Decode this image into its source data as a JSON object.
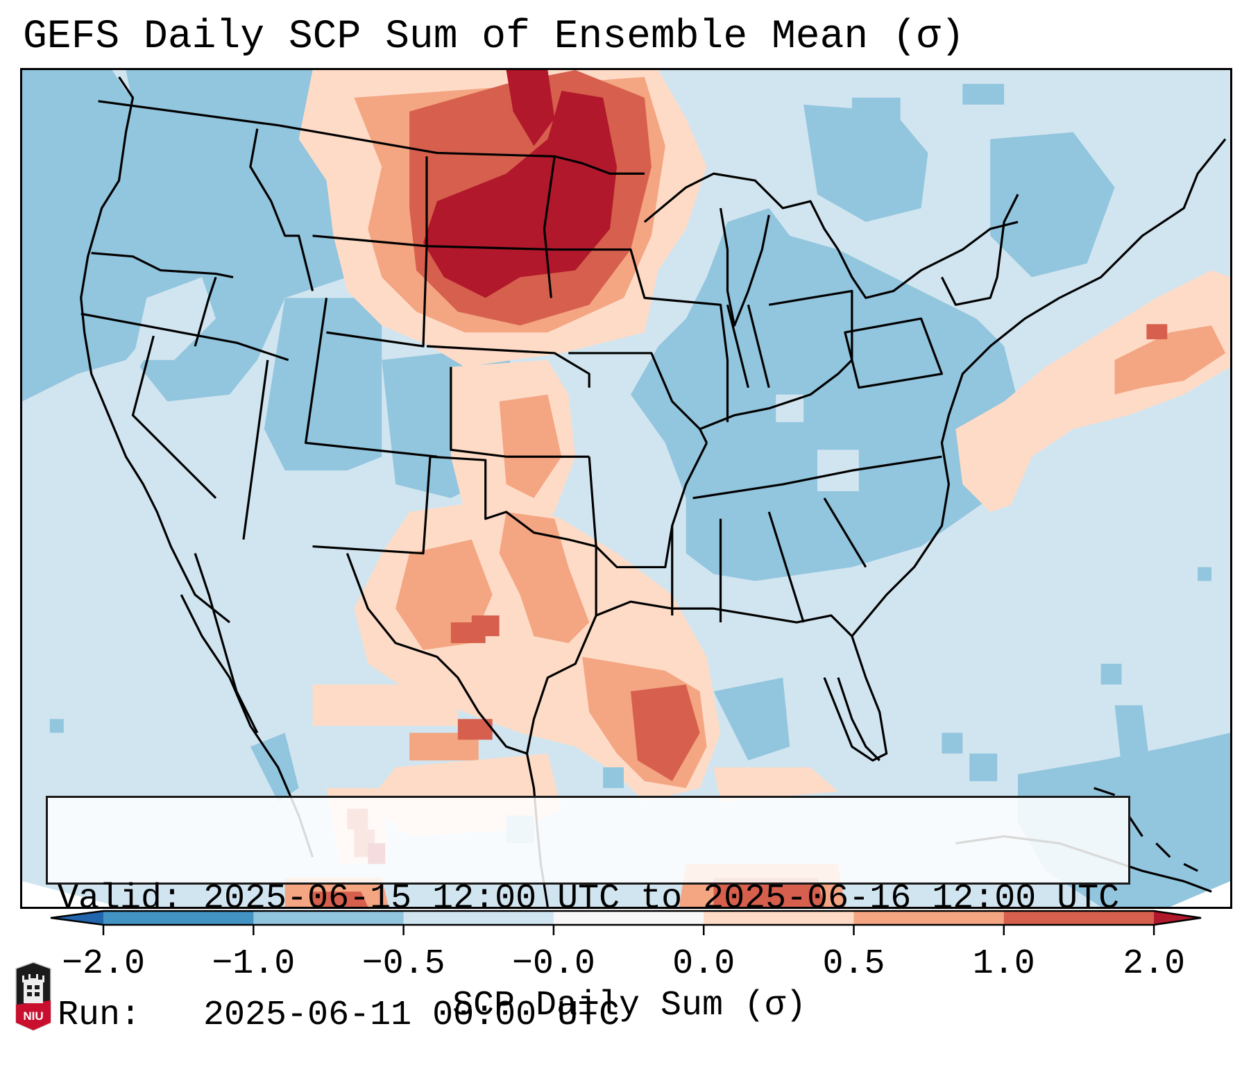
{
  "title": "GEFS Daily SCP Sum of Ensemble Mean (σ)",
  "legend": {
    "valid_line": "Valid: 2025-06-15 12:00 UTC to 2025-06-16 12:00 UTC",
    "run_line": "Run:   2025-06-11 00:00 UTC"
  },
  "colorbar": {
    "label": "SCP Daily Sum (σ)",
    "ticks": [
      "−2.0",
      "−1.0",
      "−0.5",
      "−0.0",
      "0.0",
      "0.5",
      "1.0",
      "2.0"
    ],
    "bounds": [
      -2.0,
      -1.0,
      -0.5,
      -0.0,
      0.0,
      0.5,
      1.0,
      2.0
    ],
    "under_color": "#2166ac",
    "over_color": "#b2182b",
    "segment_colors": [
      "#4393c3",
      "#92c5de",
      "#d1e5f0",
      "#f7f7f7",
      "#fddbc7",
      "#f4a582",
      "#d6604d"
    ],
    "extend": "both"
  },
  "map": {
    "projection": "Lambert Conformal (CONUS)",
    "background_class_color": "#d1e5f0",
    "field_levels": {
      "lt_-1": "#4393c3",
      "-1_to_-0.5": "#92c5de",
      "-0.5_to_0": "#d1e5f0",
      "0_to_0.5": "#fddbc7",
      "0.5_to_1": "#f4a582",
      "1_to_2": "#d6604d",
      "gt_2": "#b2182b"
    },
    "features": [
      {
        "region": "Northern Plains (MT/ND/SD/WY)",
        "max_level": "gt_2"
      },
      {
        "region": "Texas / SE Texas coast",
        "max_level": "1_to_2"
      },
      {
        "region": "New Mexico / West Texas",
        "max_level": "1_to_2"
      },
      {
        "region": "Offshore New England",
        "max_level": "1_to_2"
      },
      {
        "region": "Northwest Mexico (Sinaloa)",
        "max_level": "gt_2"
      },
      {
        "region": "Midwest / Ohio Valley",
        "max_level": "-1_to_-0.5"
      },
      {
        "region": "Pacific Northwest",
        "max_level": "-1_to_-0.5"
      },
      {
        "region": "Bahamas / Atlantic",
        "max_level": "-1_to_-0.5"
      }
    ]
  },
  "logo": {
    "text": "NIU",
    "name": "Northern Illinois University"
  }
}
